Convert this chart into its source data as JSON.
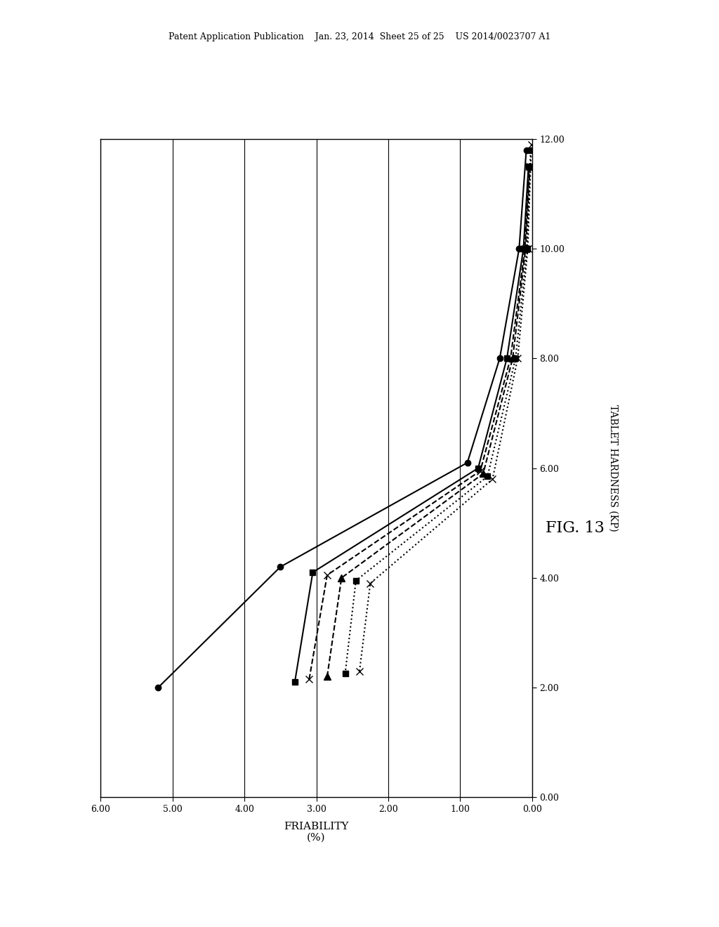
{
  "header_text": "Patent Application Publication    Jan. 23, 2014  Sheet 25 of 25    US 2014/0023707 A1",
  "fig_label": "FIG. 13",
  "xlabel": "FRIABILITY\n(%)",
  "ylabel": "TABLET HARDNESS (KP)",
  "xlim": [
    6.0,
    0.0
  ],
  "ylim": [
    0.0,
    12.0
  ],
  "xticks": [
    6.0,
    5.0,
    4.0,
    3.0,
    2.0,
    1.0,
    0.0
  ],
  "yticks": [
    0.0,
    2.0,
    4.0,
    6.0,
    8.0,
    10.0,
    12.0
  ],
  "background_color": "#ffffff",
  "series": [
    {
      "name": "s1_solid_circle",
      "friability": [
        5.2,
        3.5,
        0.9,
        0.45,
        0.18,
        0.08
      ],
      "hardness": [
        2.0,
        4.2,
        6.1,
        8.0,
        10.0,
        11.8
      ],
      "style": "solid",
      "marker": "o",
      "color": "#000000",
      "linewidth": 1.5,
      "markersize": 6
    },
    {
      "name": "s2_solid_square",
      "friability": [
        3.3,
        3.05,
        0.75,
        0.35,
        0.12,
        0.05
      ],
      "hardness": [
        2.1,
        4.1,
        6.0,
        8.0,
        10.0,
        11.5
      ],
      "style": "solid",
      "marker": "s",
      "color": "#000000",
      "linewidth": 1.5,
      "markersize": 6
    },
    {
      "name": "s3_dashed_x",
      "friability": [
        3.1,
        2.85,
        0.72,
        0.3,
        0.1,
        0.04
      ],
      "hardness": [
        2.15,
        4.05,
        5.95,
        8.0,
        10.0,
        11.5
      ],
      "style": "dashed",
      "marker": "x",
      "color": "#000000",
      "linewidth": 1.5,
      "markersize": 7
    },
    {
      "name": "s4_dashed_arrow",
      "friability": [
        2.85,
        2.65,
        0.68,
        0.27,
        0.09,
        0.03
      ],
      "hardness": [
        2.2,
        4.0,
        5.9,
        8.0,
        10.0,
        11.5
      ],
      "style": "dashed",
      "marker": "^",
      "color": "#000000",
      "linewidth": 1.5,
      "markersize": 7
    },
    {
      "name": "s5_dotted_square",
      "friability": [
        2.6,
        2.45,
        0.62,
        0.23,
        0.07,
        0.02
      ],
      "hardness": [
        2.25,
        3.95,
        5.85,
        8.0,
        10.0,
        11.8
      ],
      "style": "dotted",
      "marker": "s",
      "color": "#000000",
      "linewidth": 1.5,
      "markersize": 6
    },
    {
      "name": "s6_dotted_x",
      "friability": [
        2.4,
        2.25,
        0.55,
        0.2,
        0.06,
        0.01
      ],
      "hardness": [
        2.3,
        3.9,
        5.8,
        8.0,
        10.0,
        11.9
      ],
      "style": "dotted",
      "marker": "x",
      "color": "#000000",
      "linewidth": 1.5,
      "markersize": 7
    }
  ]
}
